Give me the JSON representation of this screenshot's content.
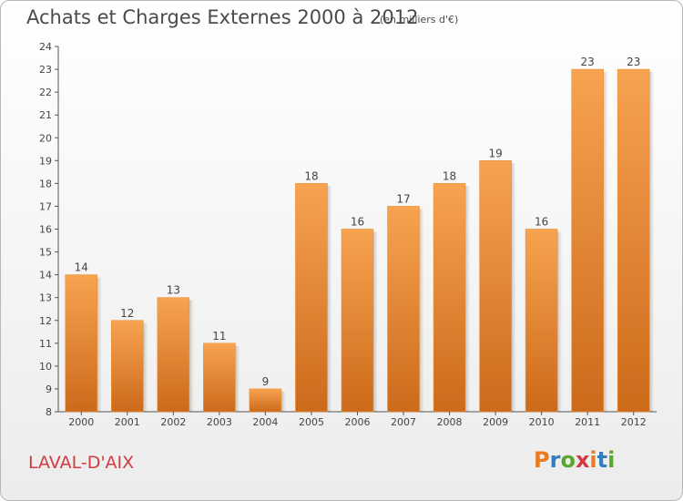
{
  "title": "Achats et Charges Externes 2000 à 2012",
  "subtitle": "(en milliers d'€)",
  "place": "LAVAL-D'AIX",
  "logo": {
    "text": "Proxiti",
    "colors": [
      "#ea7b1e",
      "#2f7fc1",
      "#5aa72f",
      "#d33a3f"
    ]
  },
  "colors": {
    "bar_top": "#f7a350",
    "bar_bottom": "#cc6a1a",
    "place_text": "#d33a3f"
  },
  "chart_data": {
    "type": "bar",
    "title": "Achats et Charges Externes 2000 à 2012",
    "subtitle": "(en milliers d'€)",
    "categories": [
      "2000",
      "2001",
      "2002",
      "2003",
      "2004",
      "2005",
      "2006",
      "2007",
      "2008",
      "2009",
      "2010",
      "2011",
      "2012"
    ],
    "values": [
      14,
      12,
      13,
      11,
      9,
      18,
      16,
      17,
      18,
      19,
      16,
      23,
      23
    ],
    "ylim": [
      8,
      24
    ],
    "yticks": [
      8,
      9,
      10,
      11,
      12,
      13,
      14,
      15,
      16,
      17,
      18,
      19,
      20,
      21,
      22,
      23,
      24
    ],
    "grid": false,
    "data_labels": true
  }
}
